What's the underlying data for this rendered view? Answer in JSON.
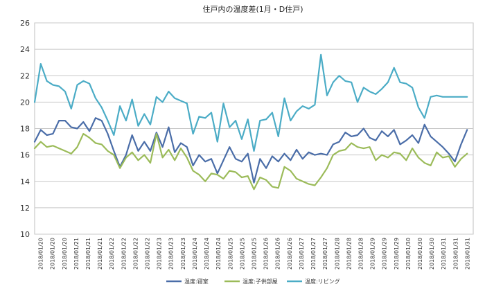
{
  "chart_data": {
    "type": "line",
    "title": "住戸内の温度差(1月・D住戸)",
    "xlabel": "",
    "ylabel": "",
    "ylim": [
      10,
      26
    ],
    "yticks": [
      10,
      12,
      14,
      16,
      18,
      20,
      22,
      24,
      26
    ],
    "grid": true,
    "legend_position": "bottom",
    "x_tick_labels": [
      "2018/01/20",
      "2018/01/20",
      "2018/01/20",
      "2018/01/21",
      "2018/01/21",
      "2018/01/21",
      "2018/01/22",
      "2018/01/22",
      "2018/01/22",
      "2018/01/22",
      "2018/01/23",
      "2018/01/23",
      "2018/01/23",
      "2018/01/24",
      "2018/01/24",
      "2018/01/24",
      "2018/01/25",
      "2018/01/25",
      "2018/01/25",
      "2018/01/26",
      "2018/01/26",
      "2018/01/26",
      "2018/01/27",
      "2018/01/27",
      "2018/01/27",
      "2018/01/28",
      "2018/01/28",
      "2018/01/28",
      "2018/01/29",
      "2018/01/29",
      "2018/01/29",
      "2018/01/30",
      "2018/01/30",
      "2018/01/30",
      "2018/01/31",
      "2018/01/31",
      "2018/01/31"
    ],
    "x_start": "2018/01/20",
    "x_end": "2018/02/01",
    "series": [
      {
        "name": "温度:寝室",
        "color": "#4a6da8",
        "points": [
          [
            "2018/01/20 00:00",
            17.0
          ],
          [
            "2018/01/20 04:00",
            17.9
          ],
          [
            "2018/01/20 08:00",
            17.5
          ],
          [
            "2018/01/20 12:00",
            17.6
          ],
          [
            "2018/01/20 16:00",
            18.6
          ],
          [
            "2018/01/20 20:00",
            18.6
          ],
          [
            "2018/01/21 00:00",
            18.1
          ],
          [
            "2018/01/21 04:00",
            18.0
          ],
          [
            "2018/01/21 08:00",
            18.5
          ],
          [
            "2018/01/21 12:00",
            17.8
          ],
          [
            "2018/01/21 16:00",
            18.8
          ],
          [
            "2018/01/21 20:00",
            18.6
          ],
          [
            "2018/01/22 00:00",
            17.6
          ],
          [
            "2018/01/22 04:00",
            16.3
          ],
          [
            "2018/01/22 08:00",
            15.1
          ],
          [
            "2018/01/22 12:00",
            16.0
          ],
          [
            "2018/01/22 16:00",
            17.5
          ],
          [
            "2018/01/22 20:00",
            16.3
          ],
          [
            "2018/01/23 00:00",
            17.0
          ],
          [
            "2018/01/23 04:00",
            16.3
          ],
          [
            "2018/01/23 08:00",
            17.7
          ],
          [
            "2018/01/23 12:00",
            16.6
          ],
          [
            "2018/01/23 16:00",
            18.1
          ],
          [
            "2018/01/23 20:00",
            16.2
          ],
          [
            "2018/01/24 00:00",
            16.9
          ],
          [
            "2018/01/24 04:00",
            16.6
          ],
          [
            "2018/01/24 08:00",
            15.2
          ],
          [
            "2018/01/24 12:00",
            16.0
          ],
          [
            "2018/01/24 16:00",
            15.5
          ],
          [
            "2018/01/24 20:00",
            15.7
          ],
          [
            "2018/01/25 00:00",
            14.6
          ],
          [
            "2018/01/25 04:00",
            15.6
          ],
          [
            "2018/01/25 08:00",
            16.6
          ],
          [
            "2018/01/25 12:00",
            15.7
          ],
          [
            "2018/01/25 16:00",
            15.5
          ],
          [
            "2018/01/25 20:00",
            16.1
          ],
          [
            "2018/01/26 00:00",
            13.9
          ],
          [
            "2018/01/26 04:00",
            15.7
          ],
          [
            "2018/01/26 08:00",
            15.0
          ],
          [
            "2018/01/26 12:00",
            15.9
          ],
          [
            "2018/01/26 16:00",
            15.5
          ],
          [
            "2018/01/26 20:00",
            16.1
          ],
          [
            "2018/01/27 00:00",
            15.6
          ],
          [
            "2018/01/27 04:00",
            16.4
          ],
          [
            "2018/01/27 08:00",
            15.7
          ],
          [
            "2018/01/27 12:00",
            16.2
          ],
          [
            "2018/01/27 16:00",
            16.0
          ],
          [
            "2018/01/27 20:00",
            16.1
          ],
          [
            "2018/01/28 00:00",
            16.0
          ],
          [
            "2018/01/28 04:00",
            16.8
          ],
          [
            "2018/01/28 08:00",
            17.0
          ],
          [
            "2018/01/28 12:00",
            17.7
          ],
          [
            "2018/01/28 16:00",
            17.4
          ],
          [
            "2018/01/28 20:00",
            17.5
          ],
          [
            "2018/01/29 00:00",
            18.0
          ],
          [
            "2018/01/29 04:00",
            17.3
          ],
          [
            "2018/01/29 08:00",
            17.1
          ],
          [
            "2018/01/29 12:00",
            17.8
          ],
          [
            "2018/01/29 16:00",
            17.4
          ],
          [
            "2018/01/29 20:00",
            17.9
          ],
          [
            "2018/01/30 00:00",
            16.8
          ],
          [
            "2018/01/30 04:00",
            17.1
          ],
          [
            "2018/01/30 08:00",
            17.5
          ],
          [
            "2018/01/30 12:00",
            16.9
          ],
          [
            "2018/01/30 16:00",
            18.3
          ],
          [
            "2018/01/30 20:00",
            17.4
          ],
          [
            "2018/01/31 00:00",
            17.0
          ],
          [
            "2018/01/31 04:00",
            16.6
          ],
          [
            "2018/01/31 08:00",
            16.1
          ],
          [
            "2018/01/31 12:00",
            15.5
          ],
          [
            "2018/01/31 16:00",
            16.8
          ],
          [
            "2018/01/31 20:00",
            17.9
          ]
        ]
      },
      {
        "name": "温度:子供部屋",
        "color": "#9bbb59",
        "points": [
          [
            "2018/01/20 00:00",
            16.5
          ],
          [
            "2018/01/20 04:00",
            17.0
          ],
          [
            "2018/01/20 08:00",
            16.6
          ],
          [
            "2018/01/20 12:00",
            16.7
          ],
          [
            "2018/01/20 16:00",
            16.5
          ],
          [
            "2018/01/20 20:00",
            16.3
          ],
          [
            "2018/01/21 00:00",
            16.1
          ],
          [
            "2018/01/21 04:00",
            16.6
          ],
          [
            "2018/01/21 08:00",
            17.6
          ],
          [
            "2018/01/21 12:00",
            17.3
          ],
          [
            "2018/01/21 16:00",
            16.9
          ],
          [
            "2018/01/21 20:00",
            16.8
          ],
          [
            "2018/01/22 00:00",
            16.3
          ],
          [
            "2018/01/22 04:00",
            16.0
          ],
          [
            "2018/01/22 08:00",
            15.0
          ],
          [
            "2018/01/22 12:00",
            15.8
          ],
          [
            "2018/01/22 16:00",
            16.2
          ],
          [
            "2018/01/22 20:00",
            15.6
          ],
          [
            "2018/01/23 00:00",
            16.0
          ],
          [
            "2018/01/23 04:00",
            15.4
          ],
          [
            "2018/01/23 08:00",
            17.6
          ],
          [
            "2018/01/23 12:00",
            15.8
          ],
          [
            "2018/01/23 16:00",
            16.4
          ],
          [
            "2018/01/23 20:00",
            15.6
          ],
          [
            "2018/01/24 00:00",
            16.5
          ],
          [
            "2018/01/24 04:00",
            15.8
          ],
          [
            "2018/01/24 08:00",
            14.8
          ],
          [
            "2018/01/24 12:00",
            14.5
          ],
          [
            "2018/01/24 16:00",
            14.0
          ],
          [
            "2018/01/24 20:00",
            14.6
          ],
          [
            "2018/01/25 00:00",
            14.5
          ],
          [
            "2018/01/25 04:00",
            14.2
          ],
          [
            "2018/01/25 08:00",
            14.8
          ],
          [
            "2018/01/25 12:00",
            14.7
          ],
          [
            "2018/01/25 16:00",
            14.3
          ],
          [
            "2018/01/25 20:00",
            14.4
          ],
          [
            "2018/01/26 00:00",
            13.4
          ],
          [
            "2018/01/26 04:00",
            14.3
          ],
          [
            "2018/01/26 08:00",
            14.1
          ],
          [
            "2018/01/26 12:00",
            13.6
          ],
          [
            "2018/01/26 16:00",
            13.5
          ],
          [
            "2018/01/26 20:00",
            15.1
          ],
          [
            "2018/01/27 00:00",
            14.8
          ],
          [
            "2018/01/27 04:00",
            14.2
          ],
          [
            "2018/01/27 08:00",
            14.0
          ],
          [
            "2018/01/27 12:00",
            13.8
          ],
          [
            "2018/01/27 16:00",
            13.7
          ],
          [
            "2018/01/27 20:00",
            14.3
          ],
          [
            "2018/01/28 00:00",
            15.0
          ],
          [
            "2018/01/28 04:00",
            16.0
          ],
          [
            "2018/01/28 08:00",
            16.3
          ],
          [
            "2018/01/28 12:00",
            16.4
          ],
          [
            "2018/01/28 16:00",
            16.9
          ],
          [
            "2018/01/28 20:00",
            16.6
          ],
          [
            "2018/01/29 00:00",
            16.5
          ],
          [
            "2018/01/29 04:00",
            16.6
          ],
          [
            "2018/01/29 08:00",
            15.6
          ],
          [
            "2018/01/29 12:00",
            16.0
          ],
          [
            "2018/01/29 16:00",
            15.8
          ],
          [
            "2018/01/29 20:00",
            16.2
          ],
          [
            "2018/01/30 00:00",
            16.1
          ],
          [
            "2018/01/30 04:00",
            15.6
          ],
          [
            "2018/01/30 08:00",
            16.5
          ],
          [
            "2018/01/30 12:00",
            15.8
          ],
          [
            "2018/01/30 16:00",
            15.4
          ],
          [
            "2018/01/30 20:00",
            15.2
          ],
          [
            "2018/01/31 00:00",
            16.2
          ],
          [
            "2018/01/31 04:00",
            15.8
          ],
          [
            "2018/01/31 08:00",
            15.9
          ],
          [
            "2018/01/31 12:00",
            15.1
          ],
          [
            "2018/01/31 16:00",
            15.7
          ],
          [
            "2018/01/31 20:00",
            16.1
          ]
        ]
      },
      {
        "name": "温度:リビング",
        "color": "#4bacc6",
        "points": [
          [
            "2018/01/20 00:00",
            20.0
          ],
          [
            "2018/01/20 04:00",
            22.9
          ],
          [
            "2018/01/20 08:00",
            21.6
          ],
          [
            "2018/01/20 12:00",
            21.3
          ],
          [
            "2018/01/20 16:00",
            21.2
          ],
          [
            "2018/01/20 20:00",
            20.8
          ],
          [
            "2018/01/21 00:00",
            19.5
          ],
          [
            "2018/01/21 04:00",
            21.3
          ],
          [
            "2018/01/21 08:00",
            21.6
          ],
          [
            "2018/01/21 12:00",
            21.4
          ],
          [
            "2018/01/21 16:00",
            20.3
          ],
          [
            "2018/01/21 20:00",
            19.6
          ],
          [
            "2018/01/22 00:00",
            18.6
          ],
          [
            "2018/01/22 04:00",
            17.5
          ],
          [
            "2018/01/22 08:00",
            19.7
          ],
          [
            "2018/01/22 12:00",
            18.6
          ],
          [
            "2018/01/22 16:00",
            20.2
          ],
          [
            "2018/01/22 20:00",
            18.2
          ],
          [
            "2018/01/23 00:00",
            19.1
          ],
          [
            "2018/01/23 04:00",
            18.3
          ],
          [
            "2018/01/23 08:00",
            20.4
          ],
          [
            "2018/01/23 12:00",
            20.0
          ],
          [
            "2018/01/23 16:00",
            20.8
          ],
          [
            "2018/01/23 20:00",
            20.3
          ],
          [
            "2018/01/24 00:00",
            20.1
          ],
          [
            "2018/01/24 04:00",
            19.9
          ],
          [
            "2018/01/24 08:00",
            17.6
          ],
          [
            "2018/01/24 12:00",
            18.9
          ],
          [
            "2018/01/24 16:00",
            18.8
          ],
          [
            "2018/01/24 20:00",
            19.2
          ],
          [
            "2018/01/25 00:00",
            17.0
          ],
          [
            "2018/01/25 04:00",
            19.9
          ],
          [
            "2018/01/25 08:00",
            18.1
          ],
          [
            "2018/01/25 12:00",
            18.6
          ],
          [
            "2018/01/25 16:00",
            17.2
          ],
          [
            "2018/01/25 20:00",
            18.7
          ],
          [
            "2018/01/26 00:00",
            16.3
          ],
          [
            "2018/01/26 04:00",
            18.6
          ],
          [
            "2018/01/26 08:00",
            18.7
          ],
          [
            "2018/01/26 12:00",
            19.2
          ],
          [
            "2018/01/26 16:00",
            17.4
          ],
          [
            "2018/01/26 20:00",
            20.3
          ],
          [
            "2018/01/27 00:00",
            18.6
          ],
          [
            "2018/01/27 04:00",
            19.3
          ],
          [
            "2018/01/27 08:00",
            19.7
          ],
          [
            "2018/01/27 12:00",
            19.5
          ],
          [
            "2018/01/27 16:00",
            19.8
          ],
          [
            "2018/01/27 20:00",
            23.6
          ],
          [
            "2018/01/28 00:00",
            20.5
          ],
          [
            "2018/01/28 04:00",
            21.5
          ],
          [
            "2018/01/28 08:00",
            22.0
          ],
          [
            "2018/01/28 12:00",
            21.6
          ],
          [
            "2018/01/28 16:00",
            21.5
          ],
          [
            "2018/01/28 20:00",
            20.0
          ],
          [
            "2018/01/29 00:00",
            21.1
          ],
          [
            "2018/01/29 04:00",
            20.8
          ],
          [
            "2018/01/29 08:00",
            20.6
          ],
          [
            "2018/01/29 12:00",
            21.0
          ],
          [
            "2018/01/29 16:00",
            21.5
          ],
          [
            "2018/01/29 20:00",
            22.6
          ],
          [
            "2018/01/30 00:00",
            21.5
          ],
          [
            "2018/01/30 04:00",
            21.4
          ],
          [
            "2018/01/30 08:00",
            21.1
          ],
          [
            "2018/01/30 12:00",
            19.6
          ],
          [
            "2018/01/30 16:00",
            18.8
          ],
          [
            "2018/01/30 20:00",
            20.4
          ],
          [
            "2018/01/31 00:00",
            20.5
          ],
          [
            "2018/01/31 04:00",
            20.4
          ],
          [
            "2018/01/31 08:00",
            20.4
          ],
          [
            "2018/01/31 12:00",
            20.4
          ],
          [
            "2018/01/31 16:00",
            20.4
          ],
          [
            "2018/01/31 20:00",
            20.4
          ]
        ]
      }
    ]
  }
}
